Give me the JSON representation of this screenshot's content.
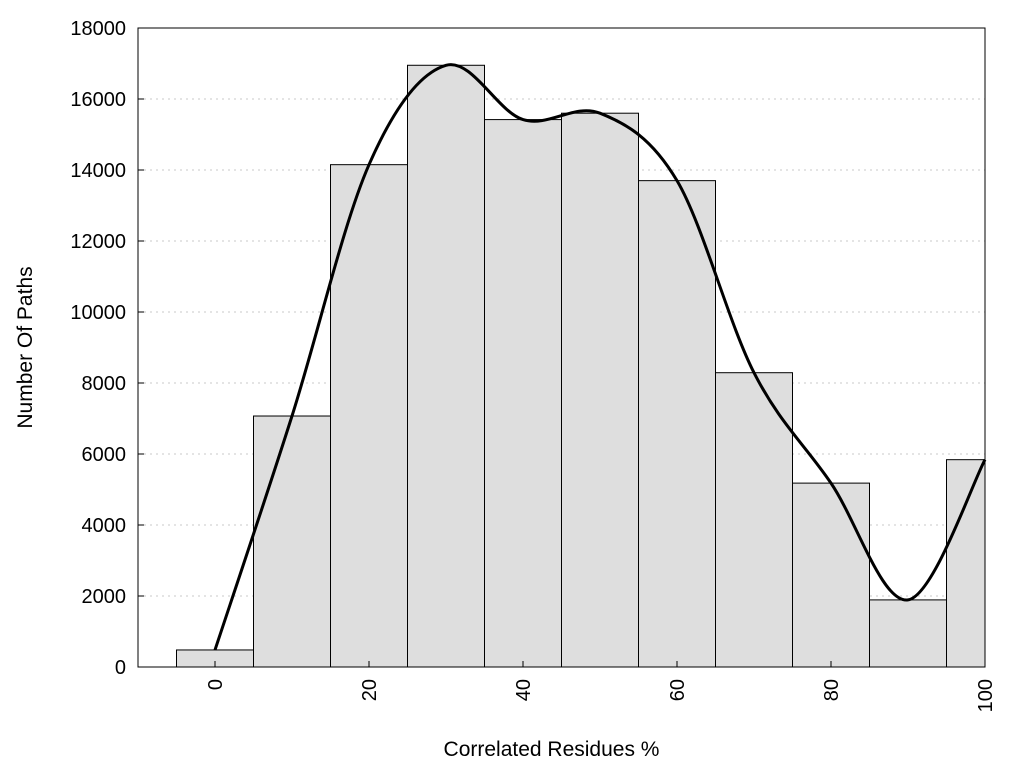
{
  "chart_data": {
    "type": "bar",
    "xlabel": "Correlated Residues %",
    "ylabel": "Number Of Paths",
    "xlim": [
      -10,
      100
    ],
    "ylim": [
      0,
      18000
    ],
    "grid": true,
    "x_ticks": [
      0,
      20,
      40,
      60,
      80,
      100
    ],
    "y_ticks": [
      0,
      2000,
      4000,
      6000,
      8000,
      10000,
      12000,
      14000,
      16000,
      18000
    ],
    "bar_width": 10,
    "series": [
      {
        "type": "bar",
        "x": [
          0,
          10,
          20,
          30,
          40,
          50,
          60,
          70,
          80,
          90,
          100
        ],
        "values": [
          480,
          7070,
          14150,
          16950,
          15420,
          15600,
          13700,
          8290,
          5180,
          1890,
          5840
        ]
      },
      {
        "type": "line",
        "style": "smooth",
        "x": [
          0,
          10,
          20,
          30,
          40,
          50,
          60,
          70,
          80,
          90,
          100
        ],
        "values": [
          480,
          7070,
          14150,
          16950,
          15420,
          15600,
          13700,
          8290,
          5180,
          1890,
          5840
        ]
      }
    ],
    "colors": {
      "bar_fill": "#dedede",
      "bar_edge": "#000000",
      "line": "#000000"
    }
  }
}
